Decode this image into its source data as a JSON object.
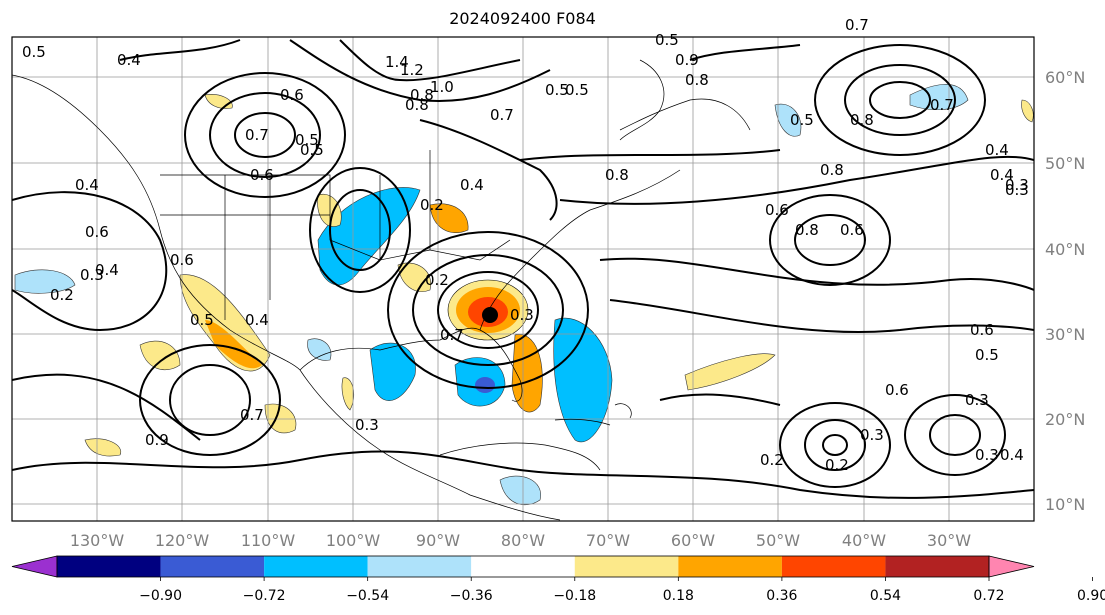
{
  "title": "2024092400 F084",
  "lon_labels": [
    "130°W",
    "120°W",
    "110°W",
    "100°W",
    "90°W",
    "80°W",
    "70°W",
    "60°W",
    "50°W",
    "40°W",
    "30°W"
  ],
  "lat_labels": [
    "60°N",
    "50°N",
    "40°N",
    "30°N",
    "20°N",
    "10°N"
  ],
  "colorbar": {
    "colors": [
      "#9b30d0",
      "#000080",
      "#3a5bd4",
      "#00bfff",
      "#aee2fa",
      "#ffffff",
      "#fce98a",
      "#ffa500",
      "#ff4500",
      "#b22222",
      "#ff85b0"
    ],
    "ticks": [
      "−0.90",
      "−0.72",
      "−0.54",
      "−0.36",
      "−0.18",
      "0.18",
      "0.36",
      "0.54",
      "0.72",
      "0.90"
    ]
  },
  "contour_labels": [
    "0.5",
    "0.4",
    "1.4",
    "1.2",
    "1.0",
    "0.8",
    "0.7",
    "0.6",
    "0.5",
    "0.4",
    "0.6",
    "0.4",
    "0.6",
    "0.5",
    "0.4",
    "0.7",
    "0.9",
    "0.3",
    "0.2",
    "0.7",
    "0.3",
    "0.8",
    "0.6",
    "0.5",
    "0.5",
    "0.9",
    "0.4",
    "0.3",
    "0.8",
    "0.6",
    "0.8",
    "0.7",
    "0.8",
    "0.5",
    "0.6",
    "0.5",
    "0.6",
    "0.3",
    "0.2",
    "0.2",
    "0.3",
    "0.4",
    "0.3",
    "0.2",
    "0.3",
    "0.4",
    "0.2",
    "0.5",
    "0.6",
    "0.7",
    "0.5",
    "0.8",
    "0.7",
    "0.8",
    "0.4",
    "0.3"
  ]
}
